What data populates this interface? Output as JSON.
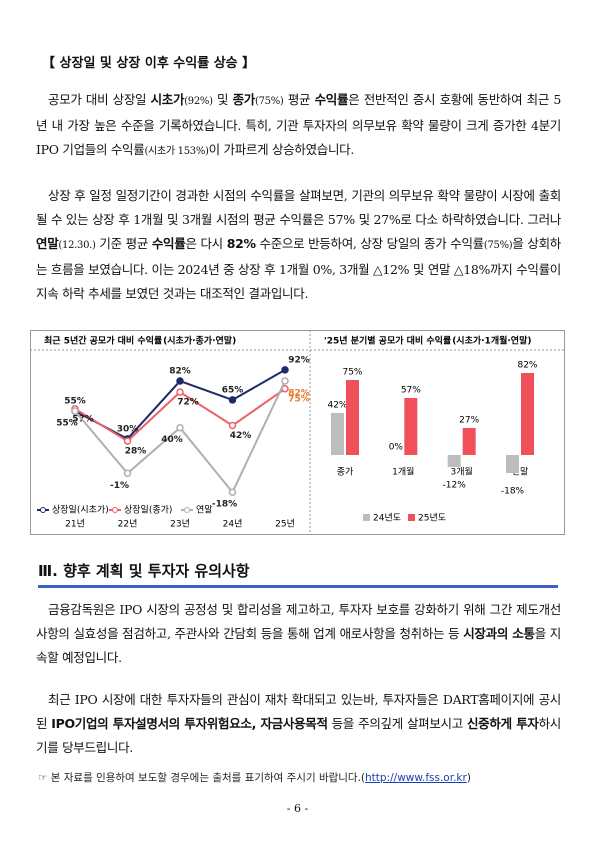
{
  "section1": {
    "heading": "【 상장일 및 상장 이후 수익률 상승 】",
    "paragraphs": [
      {
        "runs": [
          {
            "text": "공모가 대비 상장일 "
          },
          {
            "text": "시초가",
            "style": "bold"
          },
          {
            "text": "(92%)",
            "style": "small"
          },
          {
            "text": " 및 "
          },
          {
            "text": "종가",
            "style": "bold"
          },
          {
            "text": "(75%)",
            "style": "small"
          },
          {
            "text": " 평균 "
          },
          {
            "text": "수익률",
            "style": "bold"
          },
          {
            "text": "은 전반적인 증시 호황에 동반하여 최근 5년 내 가장 높은 수준을 기록하였습니다. 특히, 기관 투자자의 의무보유 확약 물량이 크게 증가한 4분기 IPO 기업들의 수익률"
          },
          {
            "text": "(시초가 153%)",
            "style": "small"
          },
          {
            "text": "이 가파르게 상승하였습니다."
          }
        ]
      },
      {
        "runs": [
          {
            "text": "상장 후 일정 일정기간이 경과한 시점의 수익률을 살펴보면, 기관의 의무보유 확약 물량이 시장에 출회될 수 있는 상장 후 1개월 및 3개월 시점의 평균 수익률은 57% 및 27%로 다소 하락하였습니다. 그러나 "
          },
          {
            "text": "연말",
            "style": "bold"
          },
          {
            "text": "(12.30.)",
            "style": "small"
          },
          {
            "text": " 기준 평균 "
          },
          {
            "text": "수익률",
            "style": "bold"
          },
          {
            "text": "은 다시 "
          },
          {
            "text": "82%",
            "style": "bold"
          },
          {
            "text": " 수준으로 반등하여, 상장 당일의 종가 수익률"
          },
          {
            "text": "(75%)",
            "style": "small"
          },
          {
            "text": "을 상회하는 흐름을 보였습니다. 이는 2024년 중 상장 후 1개월 0%, 3개월 △12% 및 연말 △18%까지 수익률이 지속 하락 추세를 보였던 것과는 대조적인 결과입니다."
          }
        ]
      }
    ]
  },
  "chart_data": [
    {
      "type": "line",
      "title": "최근 5년간 공모가 대비 수익률",
      "subtitle": "(시초가·종가·연말)",
      "categories": [
        "21년",
        "22년",
        "23년",
        "24년",
        "25년"
      ],
      "series": [
        {
          "name": "상장일(시초가)",
          "color": "#1f2a6b",
          "values": [
            55,
            30,
            82,
            65,
            92
          ],
          "value_labels": [
            "55%",
            "30%",
            "82%",
            "65%",
            "92%"
          ]
        },
        {
          "name": "상장일(종가)",
          "color": "#f0606a",
          "values": [
            57,
            28,
            72,
            42,
            75
          ],
          "value_labels": [
            "57%",
            "28%",
            "72%",
            "42%",
            "75%"
          ]
        },
        {
          "name": "연말",
          "color": "#b0b0b0",
          "values": [
            55,
            -1,
            40,
            -18,
            82
          ],
          "value_labels": [
            "55%",
            "-1%",
            "40%",
            "-18%",
            "82%"
          ]
        }
      ],
      "ylim": [
        -25,
        100
      ]
    },
    {
      "type": "bar",
      "title": "'25년 분기별 공모가 대비 수익률",
      "subtitle": "(시초가·1개월·연말)",
      "categories": [
        "종가",
        "1개월",
        "3개월",
        "연말"
      ],
      "series": [
        {
          "name": "24년도",
          "color": "#bdbdbd",
          "values": [
            42,
            0,
            -12,
            -18
          ],
          "value_labels": [
            "42%",
            "0%",
            "-12%",
            "-18%"
          ]
        },
        {
          "name": "25년도",
          "color": "#f0505a",
          "values": [
            75,
            57,
            27,
            82
          ],
          "value_labels": [
            "75%",
            "57%",
            "27%",
            "82%"
          ]
        }
      ],
      "ylim": [
        -30,
        100
      ]
    }
  ],
  "section2": {
    "heading": "Ⅲ. 향후 계획 및 투자자 유의사항",
    "paragraphs": [
      {
        "runs": [
          {
            "text": "금융감독원은 IPO 시장의 공정성 및 합리성을 제고하고, 투자자 보호를 강화하기 위해 그간 제도개선 사항의 실효성을 점검하고, 주관사와 간담회 등을 통해 업계 애로사항을 청취하는 등 "
          },
          {
            "text": "시장과의 소통",
            "style": "bold"
          },
          {
            "text": "을 지속할 예정입니다."
          }
        ]
      },
      {
        "runs": [
          {
            "text": "최근 IPO 시장에 대한 투자자들의 관심이 재차 확대되고 있는바, 투자자들은 DART홈페이지에 공시된 "
          },
          {
            "text": "IPO기업의 투자설명서의 투자위험요소, 자금사용목적",
            "style": "bold"
          },
          {
            "text": " 등을 주의깊게 살펴보시고 "
          },
          {
            "text": "신중하게 투자",
            "style": "bold"
          },
          {
            "text": "하시기를 당부드립니다."
          }
        ]
      }
    ]
  },
  "note": {
    "text": "☞ 본 자료를 인용하여 보도할 경우에는 출처를 표기하여 주시기 바랍니다.(",
    "link": "http://www.fss.or.kr",
    "close": ")"
  },
  "page_number": "- 6 -"
}
